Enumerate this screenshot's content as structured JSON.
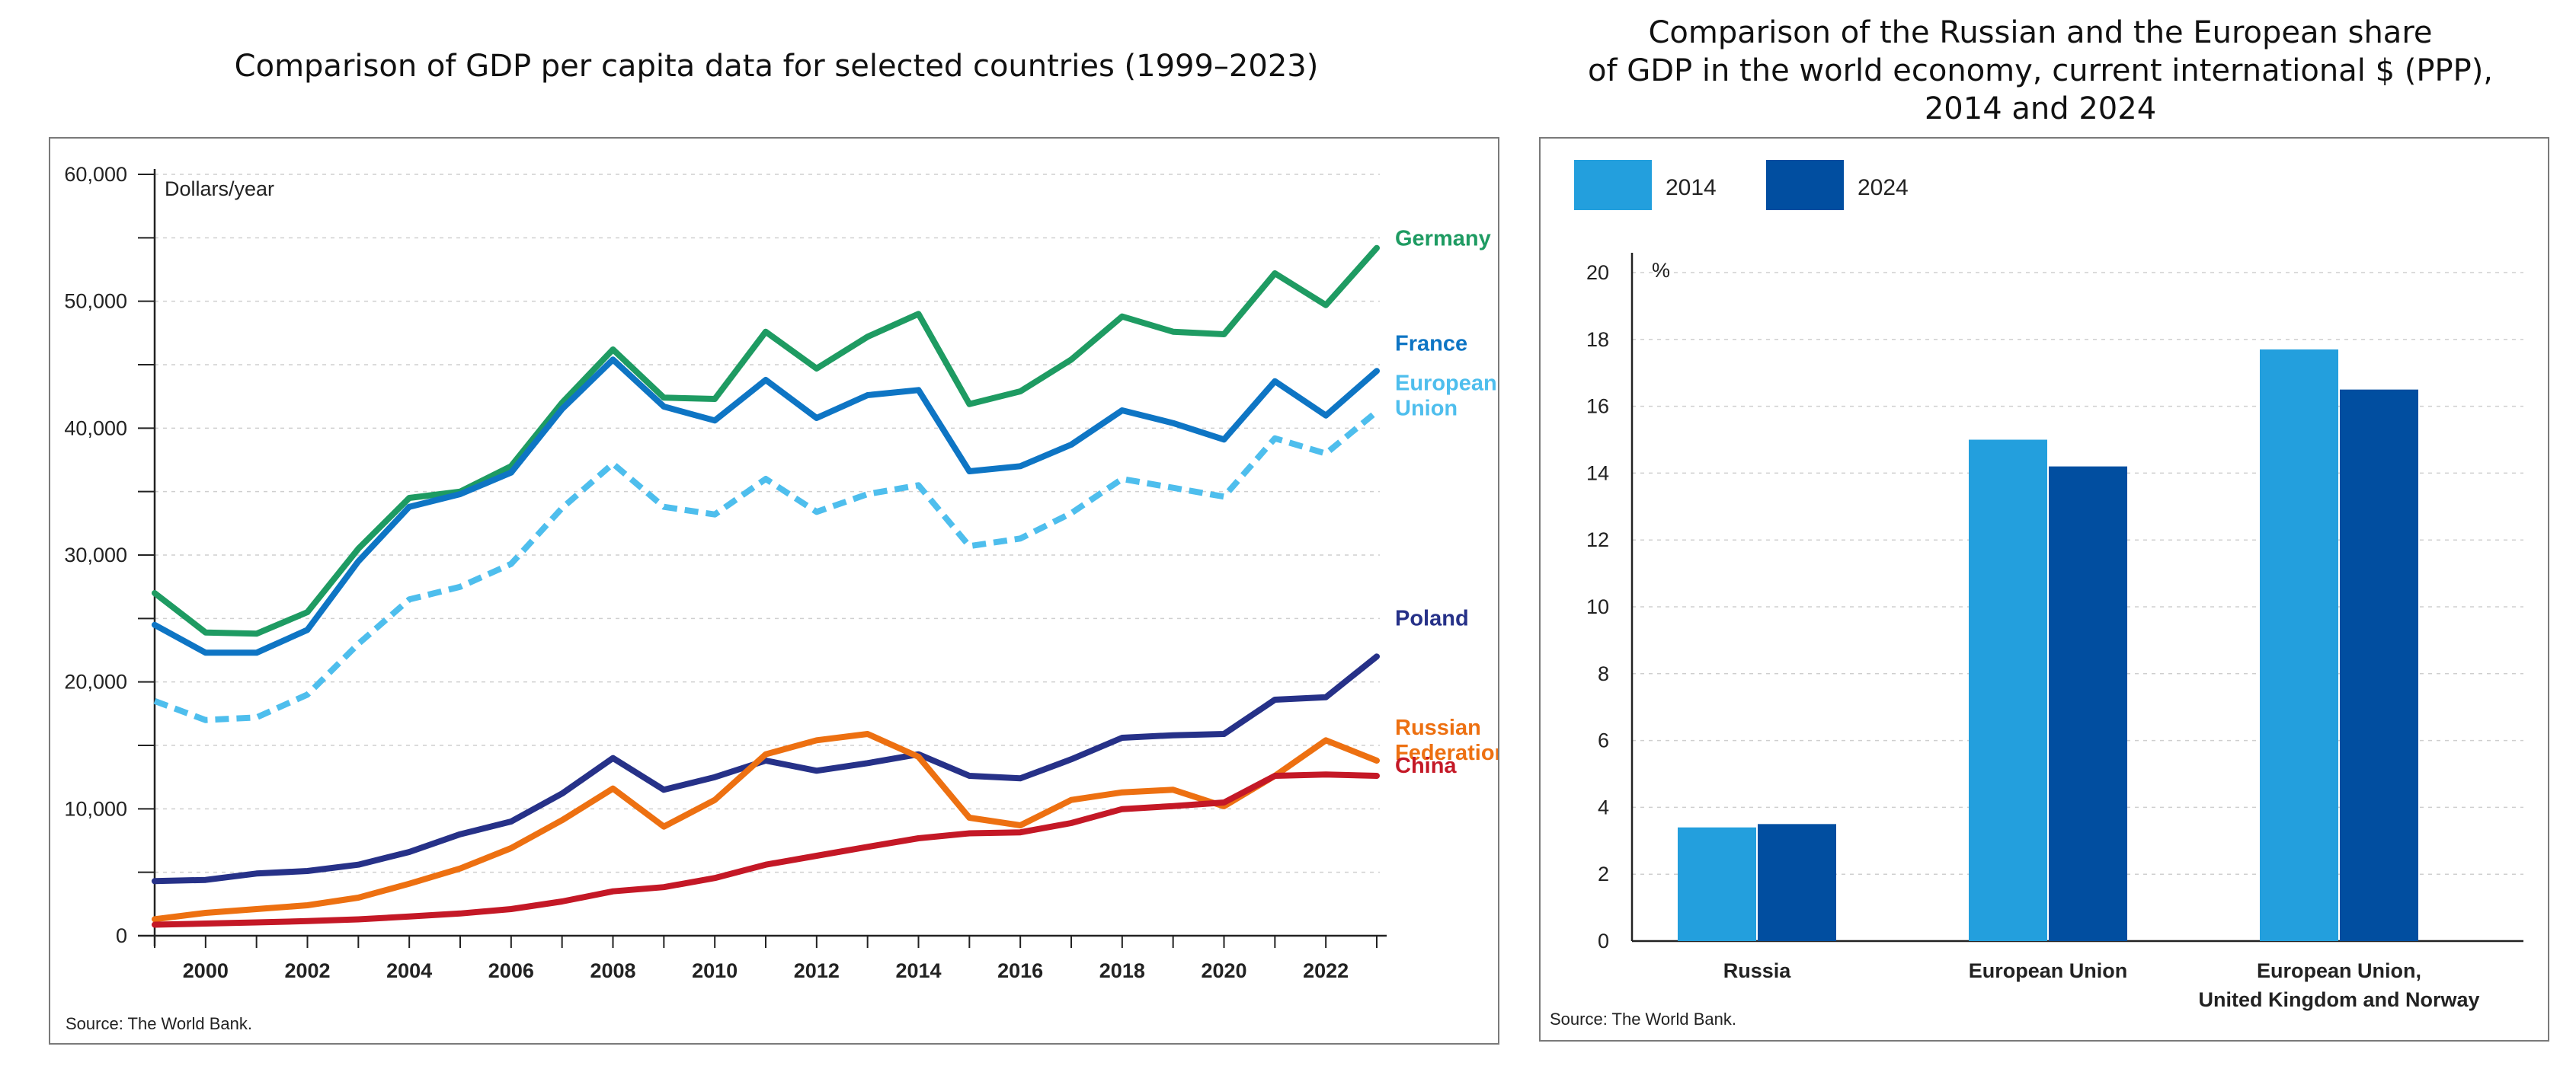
{
  "chart_data": [
    {
      "type": "line",
      "title": "Comparison of GDP per capita data for selected countries (1999–2023)",
      "ylabel": "Dollars/year",
      "ylim": [
        0,
        60000
      ],
      "yticks": [
        "0",
        "10,000",
        "20,000",
        "30,000",
        "40,000",
        "50,000",
        "60,000"
      ],
      "ytick_values": [
        0,
        10000,
        20000,
        30000,
        40000,
        50000,
        60000
      ],
      "xticks": [
        "2000",
        "2002",
        "2004",
        "2006",
        "2008",
        "2010",
        "2012",
        "2014",
        "2016",
        "2018",
        "2020",
        "2022"
      ],
      "x": [
        1999,
        2000,
        2001,
        2002,
        2003,
        2004,
        2005,
        2006,
        2007,
        2008,
        2009,
        2010,
        2011,
        2012,
        2013,
        2014,
        2015,
        2016,
        2017,
        2018,
        2019,
        2020,
        2021,
        2022,
        2023
      ],
      "grid": true,
      "source": "Source: The World Bank.",
      "series": [
        {
          "name": "Germany",
          "label_lines": [
            "Germany"
          ],
          "color": "#1e9b62",
          "dashed": false,
          "values": [
            27000,
            23900,
            23800,
            25500,
            30500,
            34500,
            35000,
            37000,
            42000,
            46200,
            42400,
            42300,
            47600,
            44700,
            47200,
            49000,
            41900,
            42900,
            45400,
            48800,
            47600,
            47400,
            52200,
            49700,
            54200
          ]
        },
        {
          "name": "France",
          "label_lines": [
            "France"
          ],
          "color": "#0e75c4",
          "dashed": false,
          "values": [
            24500,
            22300,
            22300,
            24100,
            29500,
            33800,
            34800,
            36500,
            41500,
            45400,
            41700,
            40600,
            43800,
            40800,
            42600,
            43000,
            36600,
            37000,
            38700,
            41400,
            40400,
            39100,
            43700,
            41000,
            44500
          ]
        },
        {
          "name": "European Union",
          "label_lines": [
            "European",
            "Union"
          ],
          "color": "#4ebeed",
          "dashed": true,
          "values": [
            18500,
            17000,
            17200,
            19000,
            23000,
            26500,
            27500,
            29300,
            33700,
            37200,
            33800,
            33200,
            36000,
            33400,
            34800,
            35500,
            30700,
            31300,
            33300,
            36000,
            35300,
            34600,
            39200,
            38000,
            41300
          ]
        },
        {
          "name": "Poland",
          "label_lines": [
            "Poland"
          ],
          "color": "#263188",
          "dashed": false,
          "values": [
            4300,
            4400,
            4900,
            5100,
            5600,
            6600,
            8000,
            9000,
            11200,
            14000,
            11500,
            12500,
            13800,
            13000,
            13600,
            14300,
            12600,
            12400,
            13900,
            15600,
            15800,
            15900,
            18600,
            18800,
            22000
          ]
        },
        {
          "name": "Russian Federation",
          "label_lines": [
            "Russian",
            "Federation"
          ],
          "color": "#ed7011",
          "dashed": false,
          "values": [
            1300,
            1800,
            2100,
            2400,
            3000,
            4100,
            5300,
            6900,
            9100,
            11600,
            8600,
            10700,
            14300,
            15400,
            15900,
            14100,
            9300,
            8700,
            10700,
            11300,
            11500,
            10200,
            12600,
            15400,
            13800
          ]
        },
        {
          "name": "China",
          "label_lines": [
            "China"
          ],
          "color": "#c41826",
          "dashed": false,
          "values": [
            870,
            960,
            1050,
            1150,
            1290,
            1510,
            1750,
            2100,
            2700,
            3500,
            3830,
            4550,
            5600,
            6300,
            7000,
            7680,
            8070,
            8150,
            8880,
            9980,
            10220,
            10500,
            12600,
            12700,
            12600
          ]
        }
      ]
    },
    {
      "type": "bar",
      "title": "Comparison of the Russian and the European share of GDP in the world economy, current international $ (PPP), 2014 and 2024",
      "title_lines": [
        "Comparison of the Russian and the European share",
        "of GDP in the world economy, current international $ (PPP),",
        "2014 and 2024"
      ],
      "ylabel": "%",
      "ylim": [
        0,
        20
      ],
      "yticks": [
        "0",
        "2",
        "4",
        "6",
        "8",
        "10",
        "12",
        "14",
        "16",
        "18",
        "20"
      ],
      "ytick_values": [
        0,
        2,
        4,
        6,
        8,
        10,
        12,
        14,
        16,
        18,
        20
      ],
      "categories": [
        "Russia",
        "European Union",
        "European Union, United Kingdom and Norway"
      ],
      "category_lines": [
        [
          "Russia"
        ],
        [
          "European Union"
        ],
        [
          "European Union,",
          "United Kingdom and Norway"
        ]
      ],
      "grid": true,
      "legend": "top-left",
      "source": "Source: The World Bank.",
      "series": [
        {
          "name": "2014",
          "color": "#239fdd",
          "values": [
            3.4,
            15.0,
            17.7
          ]
        },
        {
          "name": "2024",
          "color": "#014ea0",
          "values": [
            3.5,
            14.2,
            16.5
          ]
        }
      ]
    }
  ]
}
